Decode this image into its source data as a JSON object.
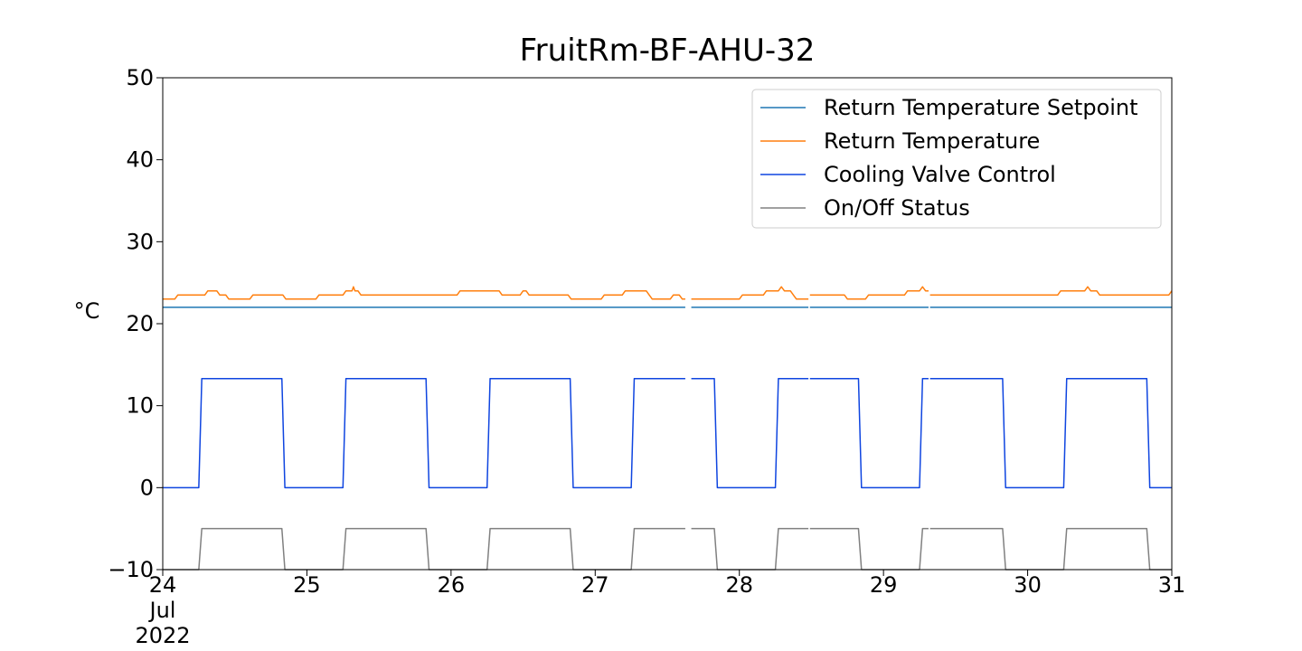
{
  "chart_data": {
    "type": "line",
    "title": "FruitRm-BF-AHU-32",
    "ylabel": "°C",
    "xlabel": "",
    "ylim": [
      -10,
      50
    ],
    "xlim": [
      "2022-07-24T00:00",
      "2022-07-31T00:00"
    ],
    "y_ticks": [
      "−10",
      "0",
      "10",
      "20",
      "30",
      "40",
      "50"
    ],
    "x_ticks": [
      {
        "lines": [
          "24",
          "Jul",
          "2022"
        ]
      },
      {
        "lines": [
          "25"
        ]
      },
      {
        "lines": [
          "26"
        ]
      },
      {
        "lines": [
          "27"
        ]
      },
      {
        "lines": [
          "28"
        ]
      },
      {
        "lines": [
          "29"
        ]
      },
      {
        "lines": [
          "30"
        ]
      },
      {
        "lines": [
          "31"
        ]
      }
    ],
    "grid": false,
    "legend_position": "top-right",
    "series": [
      {
        "name": "Return Temperature Setpoint",
        "color": "#1f77b4",
        "points": [
          [
            "2022-07-24T00:00",
            22
          ],
          [
            "2022-07-27T15:00",
            22
          ],
          [
            null,
            null
          ],
          [
            "2022-07-27T16:00",
            22
          ],
          [
            "2022-07-28T11:30",
            22
          ],
          [
            null,
            null
          ],
          [
            "2022-07-28T11:45",
            22
          ],
          [
            "2022-07-29T07:30",
            22
          ],
          [
            null,
            null
          ],
          [
            "2022-07-29T07:45",
            22
          ],
          [
            "2022-07-31T00:00",
            22
          ]
        ]
      },
      {
        "name": "Return Temperature",
        "color": "#ff7f0e",
        "points": [
          [
            "2022-07-24T00:00",
            23.0
          ],
          [
            "2022-07-24T02:00",
            23.0
          ],
          [
            "2022-07-24T02:30",
            23.5
          ],
          [
            "2022-07-24T07:00",
            23.5
          ],
          [
            "2022-07-24T07:30",
            24.0
          ],
          [
            "2022-07-24T09:00",
            24.0
          ],
          [
            "2022-07-24T09:30",
            23.5
          ],
          [
            "2022-07-24T10:30",
            23.5
          ],
          [
            "2022-07-24T11:00",
            23.0
          ],
          [
            "2022-07-24T12:30",
            23.0
          ],
          [
            "2022-07-24T13:00",
            23.0
          ],
          [
            "2022-07-24T14:30",
            23.0
          ],
          [
            "2022-07-24T15:00",
            23.5
          ],
          [
            "2022-07-24T20:00",
            23.5
          ],
          [
            "2022-07-24T20:30",
            23.0
          ],
          [
            "2022-07-25T01:30",
            23.0
          ],
          [
            "2022-07-25T02:00",
            23.5
          ],
          [
            "2022-07-25T06:00",
            23.5
          ],
          [
            "2022-07-25T06:30",
            24.0
          ],
          [
            "2022-07-25T07:30",
            24.0
          ],
          [
            "2022-07-25T07:45",
            24.5
          ],
          [
            "2022-07-25T08:00",
            24.0
          ],
          [
            "2022-07-25T08:30",
            24.0
          ],
          [
            "2022-07-25T09:00",
            23.5
          ],
          [
            "2022-07-26T01:00",
            23.5
          ],
          [
            "2022-07-26T01:30",
            24.0
          ],
          [
            "2022-07-26T08:00",
            24.0
          ],
          [
            "2022-07-26T08:30",
            23.5
          ],
          [
            "2022-07-26T11:30",
            23.5
          ],
          [
            "2022-07-26T12:00",
            24.0
          ],
          [
            "2022-07-26T12:30",
            24.0
          ],
          [
            "2022-07-26T13:00",
            23.5
          ],
          [
            "2022-07-26T19:30",
            23.5
          ],
          [
            "2022-07-26T20:00",
            23.0
          ],
          [
            "2022-07-27T01:00",
            23.0
          ],
          [
            "2022-07-27T01:30",
            23.5
          ],
          [
            "2022-07-27T04:30",
            23.5
          ],
          [
            "2022-07-27T05:00",
            24.0
          ],
          [
            "2022-07-27T08:30",
            24.0
          ],
          [
            "2022-07-27T09:00",
            23.5
          ],
          [
            "2022-07-27T09:30",
            23.0
          ],
          [
            "2022-07-27T12:30",
            23.0
          ],
          [
            "2022-07-27T13:00",
            23.5
          ],
          [
            "2022-07-27T14:00",
            23.5
          ],
          [
            "2022-07-27T14:30",
            23.0
          ],
          [
            "2022-07-27T15:00",
            23.0
          ],
          [
            null,
            null
          ],
          [
            "2022-07-27T16:00",
            23.0
          ],
          [
            "2022-07-28T00:00",
            23.0
          ],
          [
            "2022-07-28T00:30",
            23.5
          ],
          [
            "2022-07-28T04:00",
            23.5
          ],
          [
            "2022-07-28T04:30",
            24.0
          ],
          [
            "2022-07-28T06:30",
            24.0
          ],
          [
            "2022-07-28T07:00",
            24.5
          ],
          [
            "2022-07-28T07:30",
            24.0
          ],
          [
            "2022-07-28T08:30",
            24.0
          ],
          [
            "2022-07-28T09:00",
            23.5
          ],
          [
            "2022-07-28T09:30",
            23.0
          ],
          [
            "2022-07-28T11:30",
            23.0
          ],
          [
            null,
            null
          ],
          [
            "2022-07-28T11:45",
            23.5
          ],
          [
            "2022-07-28T17:30",
            23.5
          ],
          [
            "2022-07-28T18:00",
            23.0
          ],
          [
            "2022-07-28T21:00",
            23.0
          ],
          [
            "2022-07-28T21:30",
            23.5
          ],
          [
            "2022-07-29T03:30",
            23.5
          ],
          [
            "2022-07-29T04:00",
            24.0
          ],
          [
            "2022-07-29T06:00",
            24.0
          ],
          [
            "2022-07-29T06:30",
            24.5
          ],
          [
            "2022-07-29T07:00",
            24.0
          ],
          [
            "2022-07-29T07:30",
            24.0
          ],
          [
            null,
            null
          ],
          [
            "2022-07-29T07:45",
            23.5
          ],
          [
            "2022-07-30T05:00",
            23.5
          ],
          [
            "2022-07-30T05:30",
            24.0
          ],
          [
            "2022-07-30T09:30",
            24.0
          ],
          [
            "2022-07-30T10:00",
            24.5
          ],
          [
            "2022-07-30T10:30",
            24.0
          ],
          [
            "2022-07-30T11:30",
            24.0
          ],
          [
            "2022-07-30T12:00",
            23.5
          ],
          [
            "2022-07-30T23:30",
            23.5
          ],
          [
            "2022-07-31T00:00",
            24.0
          ]
        ]
      },
      {
        "name": "Cooling Valve Control",
        "color": "#0f45e0",
        "points": [
          [
            "2022-07-24T00:00",
            0
          ],
          [
            "2022-07-24T06:00",
            0
          ],
          [
            "2022-07-24T06:30",
            13.3
          ],
          [
            "2022-07-24T19:50",
            13.3
          ],
          [
            "2022-07-24T20:20",
            0
          ],
          [
            "2022-07-25T06:00",
            0
          ],
          [
            "2022-07-25T06:30",
            13.3
          ],
          [
            "2022-07-25T19:50",
            13.3
          ],
          [
            "2022-07-25T20:20",
            0
          ],
          [
            "2022-07-26T06:00",
            0
          ],
          [
            "2022-07-26T06:30",
            13.3
          ],
          [
            "2022-07-26T19:50",
            13.3
          ],
          [
            "2022-07-26T20:20",
            0
          ],
          [
            "2022-07-27T06:00",
            0
          ],
          [
            "2022-07-27T06:30",
            13.3
          ],
          [
            "2022-07-27T15:00",
            13.3
          ],
          [
            null,
            null
          ],
          [
            "2022-07-27T16:00",
            13.3
          ],
          [
            "2022-07-27T19:50",
            13.3
          ],
          [
            "2022-07-27T20:20",
            0
          ],
          [
            "2022-07-28T06:00",
            0
          ],
          [
            "2022-07-28T06:30",
            13.3
          ],
          [
            "2022-07-28T11:30",
            13.3
          ],
          [
            null,
            null
          ],
          [
            "2022-07-28T11:45",
            13.3
          ],
          [
            "2022-07-28T19:50",
            13.3
          ],
          [
            "2022-07-28T20:20",
            0
          ],
          [
            "2022-07-29T06:00",
            0
          ],
          [
            "2022-07-29T06:30",
            13.3
          ],
          [
            "2022-07-29T07:30",
            13.3
          ],
          [
            null,
            null
          ],
          [
            "2022-07-29T07:45",
            13.3
          ],
          [
            "2022-07-29T19:50",
            13.3
          ],
          [
            "2022-07-29T20:20",
            0
          ],
          [
            "2022-07-30T06:00",
            0
          ],
          [
            "2022-07-30T06:30",
            13.3
          ],
          [
            "2022-07-30T19:50",
            13.3
          ],
          [
            "2022-07-30T20:20",
            0
          ],
          [
            "2022-07-31T00:00",
            0
          ]
        ]
      },
      {
        "name": "On/Off Status",
        "color": "#808080",
        "points": [
          [
            "2022-07-24T00:00",
            -10
          ],
          [
            "2022-07-24T06:00",
            -10
          ],
          [
            "2022-07-24T06:30",
            -5
          ],
          [
            "2022-07-24T19:50",
            -5
          ],
          [
            "2022-07-24T20:20",
            -10
          ],
          [
            "2022-07-25T06:00",
            -10
          ],
          [
            "2022-07-25T06:30",
            -5
          ],
          [
            "2022-07-25T19:50",
            -5
          ],
          [
            "2022-07-25T20:20",
            -10
          ],
          [
            "2022-07-26T06:00",
            -10
          ],
          [
            "2022-07-26T06:30",
            -5
          ],
          [
            "2022-07-26T19:50",
            -5
          ],
          [
            "2022-07-26T20:20",
            -10
          ],
          [
            "2022-07-27T06:00",
            -10
          ],
          [
            "2022-07-27T06:30",
            -5
          ],
          [
            "2022-07-27T15:00",
            -5
          ],
          [
            null,
            null
          ],
          [
            "2022-07-27T16:00",
            -5
          ],
          [
            "2022-07-27T19:50",
            -5
          ],
          [
            "2022-07-27T20:20",
            -10
          ],
          [
            "2022-07-28T06:00",
            -10
          ],
          [
            "2022-07-28T06:30",
            -5
          ],
          [
            "2022-07-28T11:30",
            -5
          ],
          [
            null,
            null
          ],
          [
            "2022-07-28T11:45",
            -5
          ],
          [
            "2022-07-28T19:50",
            -5
          ],
          [
            "2022-07-28T20:20",
            -10
          ],
          [
            "2022-07-29T06:00",
            -10
          ],
          [
            "2022-07-29T06:30",
            -5
          ],
          [
            "2022-07-29T07:30",
            -5
          ],
          [
            null,
            null
          ],
          [
            "2022-07-29T07:45",
            -5
          ],
          [
            "2022-07-29T19:50",
            -5
          ],
          [
            "2022-07-29T20:20",
            -10
          ],
          [
            "2022-07-30T06:00",
            -10
          ],
          [
            "2022-07-30T06:30",
            -5
          ],
          [
            "2022-07-30T19:50",
            -5
          ],
          [
            "2022-07-30T20:20",
            -10
          ],
          [
            "2022-07-31T00:00",
            -10
          ]
        ]
      }
    ]
  }
}
